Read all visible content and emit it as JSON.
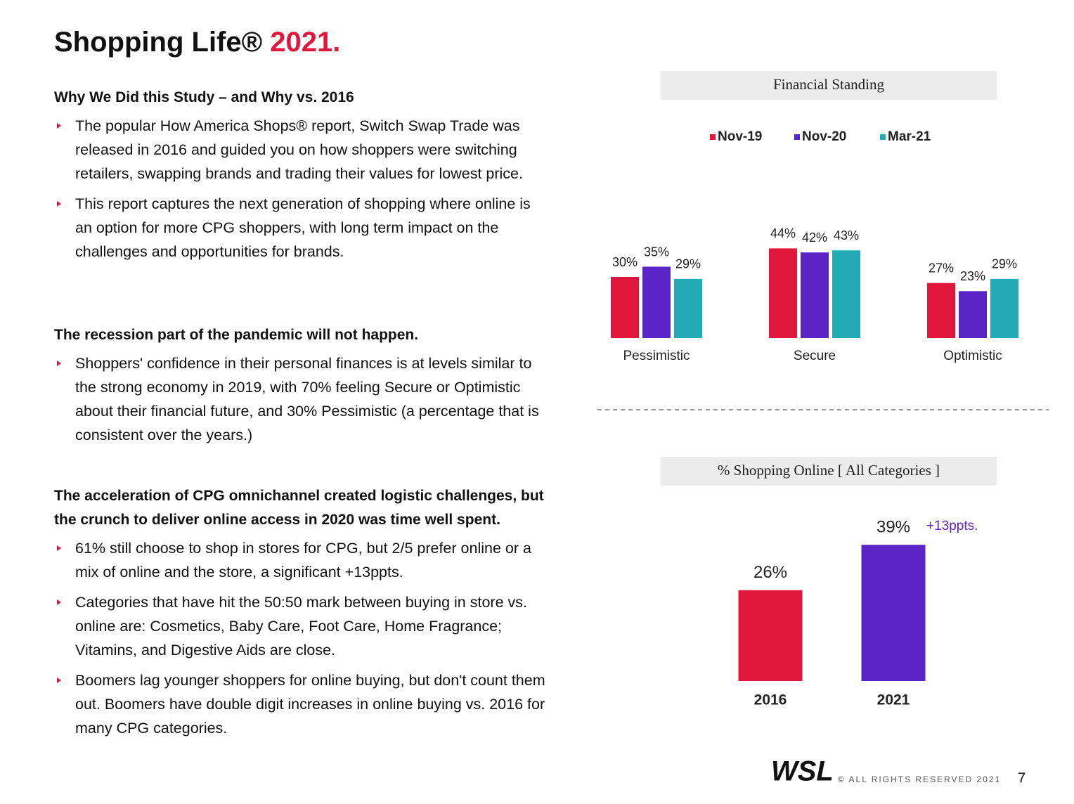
{
  "header": {
    "title": "Shopping Life®",
    "title_year": "2021."
  },
  "sections": [
    {
      "heading": "Why We Did this Study – and Why vs. 2016",
      "bullets": [
        "The popular How America Shops® report, Switch Swap Trade was released in 2016 and guided you on how shoppers were switching retailers, swapping brands and trading their values for lowest price.",
        "This report captures the next generation of shopping where online is an option for more CPG shoppers, with long term impact on the challenges and opportunities for brands."
      ]
    },
    {
      "heading": "The recession part of the pandemic will not happen.",
      "bullets": [
        "Shoppers' confidence in their personal finances is at levels similar to the strong economy in 2019, with 70% feeling Secure or Optimistic about their financial future, and  30% Pessimistic (a percentage that is consistent over the years.)"
      ]
    },
    {
      "heading": "The acceleration of CPG omnichannel created logistic challenges, but the crunch to deliver online access in 2020 was time well spent.",
      "bullets": [
        "61% still choose to shop in stores for CPG, but 2/5 prefer online or a mix of online and the store, a significant +13ppts.",
        "Categories that have hit the 50:50 mark between buying in store vs. online are: Cosmetics, Baby Care, Foot Care, Home Fragrance;  Vitamins, and Digestive Aids are close.",
        "Boomers lag younger shoppers for online buying, but don't count them out.  Boomers have double digit increases in online buying vs. 2016 for many CPG categories."
      ]
    }
  ],
  "chart_data": [
    {
      "type": "bar",
      "title": "Financial Standing",
      "categories": [
        "Pessimistic",
        "Secure",
        "Optimistic"
      ],
      "series": [
        {
          "name": "Nov-19",
          "color": "#e0173a",
          "values": [
            30,
            44,
            27
          ],
          "value_labels": [
            "30%",
            "44%",
            "27%"
          ]
        },
        {
          "name": "Nov-20",
          "color": "#5b24c4",
          "values": [
            35,
            42,
            23
          ],
          "value_labels": [
            "35%",
            "42%",
            "23%"
          ]
        },
        {
          "name": "Mar-21",
          "color": "#22aab5",
          "values": [
            29,
            43,
            29
          ],
          "value_labels": [
            "29%",
            "43%",
            "29%"
          ]
        }
      ]
    },
    {
      "type": "bar",
      "title": "% Shopping Online [ All Categories ]",
      "categories": [
        "2016",
        "2021"
      ],
      "values": [
        26,
        39
      ],
      "value_labels": [
        "26%",
        "39%"
      ],
      "colors": [
        "#e0173a",
        "#5b24c4"
      ],
      "annotation": "+13ppts."
    }
  ],
  "footer": {
    "logo": "WSL",
    "copyright": "© ALL RIGHTS RESERVED 2021",
    "page": "7"
  }
}
